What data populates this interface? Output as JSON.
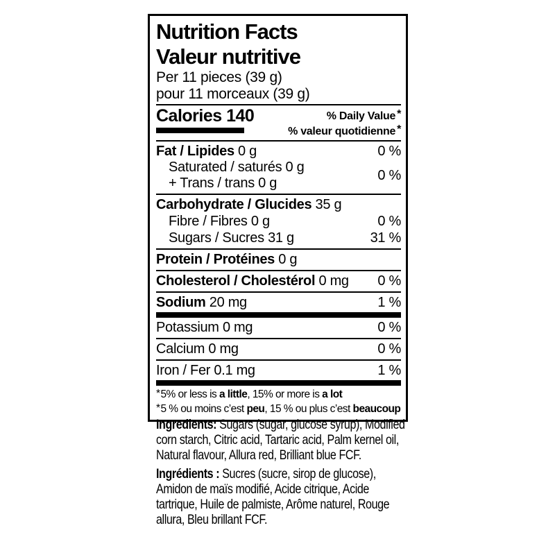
{
  "colors": {
    "ink": "#000000",
    "paper": "#ffffff"
  },
  "label": {
    "title_en": "Nutrition Facts",
    "title_fr": "Valeur nutritive",
    "serving_en": "Per 11 pieces (39 g)",
    "serving_fr": "pour 11 morceaux (39 g)",
    "calories_label": "Calories",
    "calories_value": "140",
    "dv_header_en": "% Daily Value",
    "dv_header_fr": "% valeur quotidienne",
    "dv_star": "*",
    "footnote_en": {
      "star": "*",
      "pre": "5% or less is ",
      "bold1": "a little",
      "mid": ", 15% or more is ",
      "bold2": "a lot"
    },
    "footnote_fr": {
      "star": "*",
      "pre": "5 % ou moins c’est ",
      "bold1": "peu",
      "mid": ", 15 % ou plus c’est ",
      "bold2": "beaucoup"
    }
  },
  "nutrients": {
    "fat": {
      "name": "Fat / Lipides",
      "value": "0 g",
      "pct": "0 %"
    },
    "sat_trans": {
      "line1": "Saturated / saturés 0 g",
      "line2": "+ Trans / trans 0 g",
      "pct": "0 %"
    },
    "carbohydrate": {
      "name": "Carbohydrate / Glucides",
      "value": "35 g"
    },
    "fibre": {
      "name": "Fibre / Fibres",
      "value": "0 g",
      "pct": "0 %"
    },
    "sugars": {
      "name": "Sugars / Sucres",
      "value": "31 g",
      "pct": "31 %"
    },
    "protein": {
      "name": "Protein / Protéines",
      "value": "0 g"
    },
    "cholesterol": {
      "name": "Cholesterol / Cholestérol",
      "value": "0 mg",
      "pct": "0 %"
    },
    "sodium": {
      "name": "Sodium",
      "value": "20 mg",
      "pct": "1 %"
    },
    "potassium": {
      "name": "Potassium",
      "value": "0 mg",
      "pct": "0 %"
    },
    "calcium": {
      "name": "Calcium",
      "value": "0 mg",
      "pct": "0 %"
    },
    "iron": {
      "name": "Iron / Fer",
      "value": "0.1 mg",
      "pct": "1 %"
    }
  },
  "ingredients": {
    "en_label": "Ingredients:",
    "en_text": " Sugars (sugar, glucose syrup), Modified corn starch, Citric acid, Tartaric acid, Palm kernel oil, Natural flavour, Allura red, Brilliant blue FCF.",
    "fr_label": "Ingrédients :",
    "fr_text": " Sucres (sucre, sirop de glucose), Amidon de maïs modifié, Acide citrique, Acide tartrique, Huile de palmiste, Arôme naturel, Rouge allura, Bleu brillant FCF."
  }
}
